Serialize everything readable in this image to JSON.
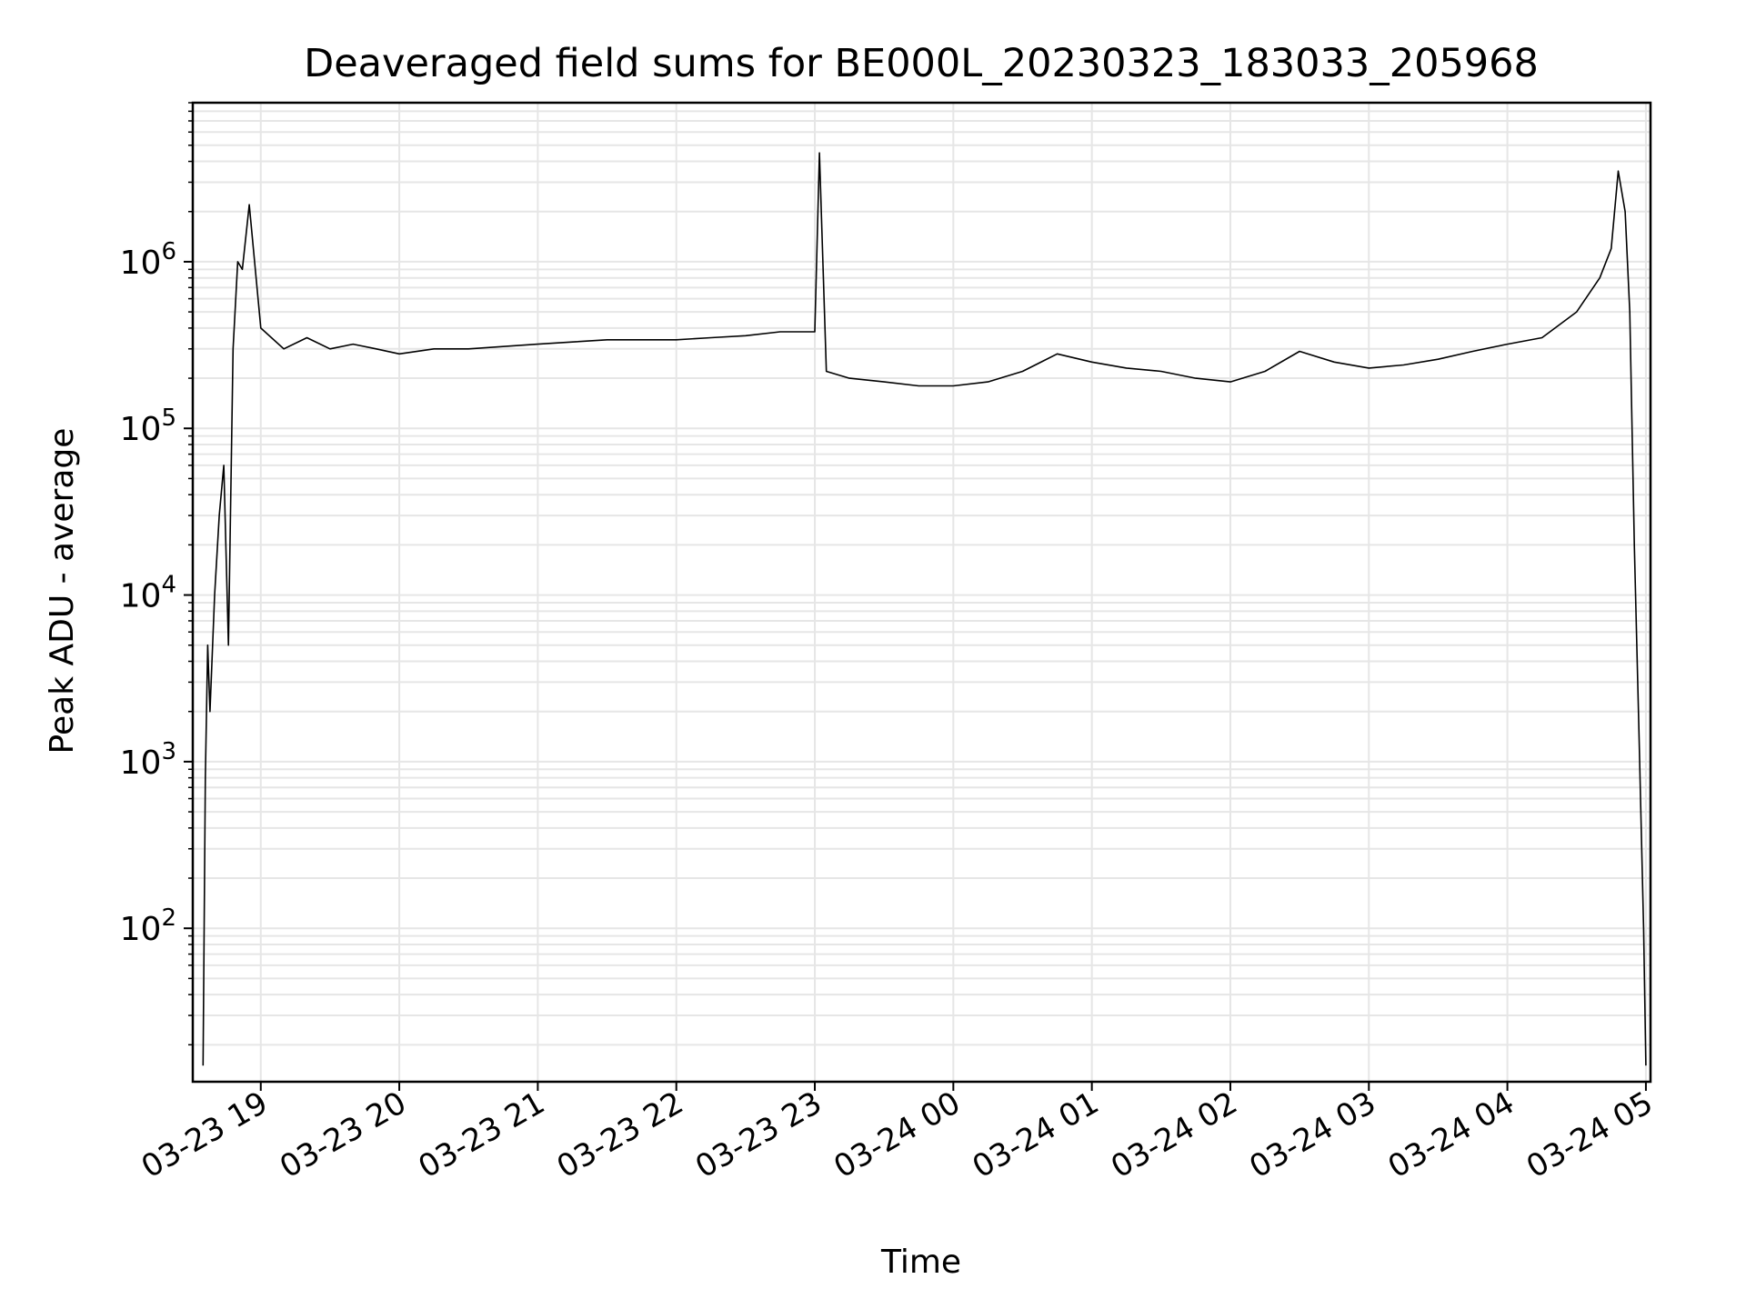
{
  "chart_data": {
    "type": "line",
    "title": "Deaveraged field sums for BE000L_20230323_183033_205968",
    "xlabel": "Time",
    "ylabel": "Peak ADU - average",
    "y_scale": "log",
    "ylim": [
      12,
      9000000
    ],
    "xlim": [
      "2023-03-23 18:30:33",
      "2023-03-24 05:02:00"
    ],
    "grid": true,
    "legend": "none",
    "line_color": "#000000",
    "grid_color": "#e6e6e6",
    "x_ticks": [
      {
        "value": "2023-03-23 19:00",
        "label": "03-23 19"
      },
      {
        "value": "2023-03-23 20:00",
        "label": "03-23 20"
      },
      {
        "value": "2023-03-23 21:00",
        "label": "03-23 21"
      },
      {
        "value": "2023-03-23 22:00",
        "label": "03-23 22"
      },
      {
        "value": "2023-03-23 23:00",
        "label": "03-23 23"
      },
      {
        "value": "2023-03-24 00:00",
        "label": "03-24 00"
      },
      {
        "value": "2023-03-24 01:00",
        "label": "03-24 01"
      },
      {
        "value": "2023-03-24 02:00",
        "label": "03-24 02"
      },
      {
        "value": "2023-03-24 03:00",
        "label": "03-24 03"
      },
      {
        "value": "2023-03-24 04:00",
        "label": "03-24 04"
      },
      {
        "value": "2023-03-24 05:00",
        "label": "03-24 05"
      }
    ],
    "y_ticks": [
      {
        "value": 100,
        "base": "10",
        "exp": "2"
      },
      {
        "value": 1000,
        "base": "10",
        "exp": "3"
      },
      {
        "value": 10000,
        "base": "10",
        "exp": "4"
      },
      {
        "value": 100000,
        "base": "10",
        "exp": "5"
      },
      {
        "value": 1000000,
        "base": "10",
        "exp": "6"
      }
    ],
    "series": [
      {
        "x": [
          "2023-03-23 18:35",
          "2023-03-23 18:36",
          "2023-03-23 18:37",
          "2023-03-23 18:38",
          "2023-03-23 18:40",
          "2023-03-23 18:42",
          "2023-03-23 18:44",
          "2023-03-23 18:46",
          "2023-03-23 18:48",
          "2023-03-23 18:50",
          "2023-03-23 18:52",
          "2023-03-23 18:55",
          "2023-03-23 19:00",
          "2023-03-23 19:10",
          "2023-03-23 19:20",
          "2023-03-23 19:30",
          "2023-03-23 19:40",
          "2023-03-23 19:50",
          "2023-03-23 20:00",
          "2023-03-23 20:15",
          "2023-03-23 20:30",
          "2023-03-23 20:45",
          "2023-03-23 21:00",
          "2023-03-23 21:15",
          "2023-03-23 21:30",
          "2023-03-23 21:45",
          "2023-03-23 22:00",
          "2023-03-23 22:15",
          "2023-03-23 22:30",
          "2023-03-23 22:45",
          "2023-03-23 23:00",
          "2023-03-23 23:02",
          "2023-03-23 23:05",
          "2023-03-23 23:15",
          "2023-03-23 23:30",
          "2023-03-23 23:45",
          "2023-03-24 00:00",
          "2023-03-24 00:15",
          "2023-03-24 00:30",
          "2023-03-24 00:45",
          "2023-03-24 01:00",
          "2023-03-24 01:15",
          "2023-03-24 01:30",
          "2023-03-24 01:45",
          "2023-03-24 02:00",
          "2023-03-24 02:15",
          "2023-03-24 02:30",
          "2023-03-24 02:45",
          "2023-03-24 03:00",
          "2023-03-24 03:15",
          "2023-03-24 03:30",
          "2023-03-24 03:45",
          "2023-03-24 04:00",
          "2023-03-24 04:15",
          "2023-03-24 04:30",
          "2023-03-24 04:40",
          "2023-03-24 04:45",
          "2023-03-24 04:48",
          "2023-03-24 04:51",
          "2023-03-24 04:53",
          "2023-03-24 04:55",
          "2023-03-24 04:57",
          "2023-03-24 04:59",
          "2023-03-24 05:00"
        ],
        "y": [
          15,
          800,
          5000,
          2000,
          10000,
          30000,
          60000,
          5000,
          300000,
          1000000,
          900000,
          2200000,
          400000,
          300000,
          350000,
          300000,
          320000,
          300000,
          280000,
          300000,
          300000,
          310000,
          320000,
          330000,
          340000,
          340000,
          340000,
          350000,
          360000,
          380000,
          380000,
          4500000,
          220000,
          200000,
          190000,
          180000,
          180000,
          190000,
          220000,
          280000,
          250000,
          230000,
          220000,
          200000,
          190000,
          220000,
          290000,
          250000,
          230000,
          240000,
          260000,
          290000,
          320000,
          350000,
          500000,
          800000,
          1200000,
          3500000,
          2000000,
          500000,
          20000,
          1500,
          100,
          15
        ]
      }
    ]
  }
}
